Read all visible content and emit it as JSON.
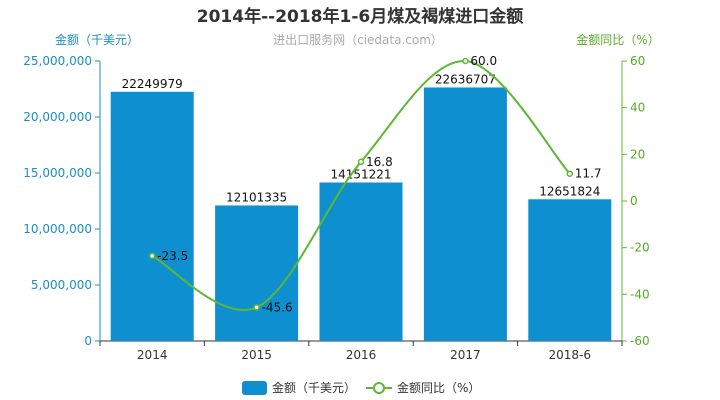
{
  "chart_data": {
    "type": "bar",
    "title": "2014年--2018年1-6月煤及褐煤进口金额",
    "subtitle": "进出口服务网（ciedata.com）",
    "left_axis_label": "金额（千美元）",
    "right_axis_label": "金额同比（%）",
    "categories": [
      "2014",
      "2015",
      "2016",
      "2017",
      "2018-6"
    ],
    "left_ylim": [
      0,
      25000000
    ],
    "left_ticks": [
      0,
      5000000,
      10000000,
      15000000,
      20000000,
      25000000
    ],
    "left_tick_labels": [
      "0",
      "5,000,000",
      "10,000,000",
      "15,000,000",
      "20,000,000",
      "25,000,000"
    ],
    "right_ylim": [
      -60,
      60
    ],
    "right_ticks": [
      -60,
      -40,
      -20,
      0,
      20,
      40,
      60
    ],
    "right_tick_labels": [
      "-60",
      "-40",
      "-20",
      "0",
      "20",
      "40",
      "60"
    ],
    "series": [
      {
        "name": "金额（千美元）",
        "type": "bar",
        "axis": "left",
        "values": [
          22249979,
          12101335,
          14151221,
          22636707,
          12651824
        ],
        "labels": [
          "22249979",
          "12101335",
          "14151221",
          "22636707",
          "12651824"
        ],
        "color": "#0e8fd0"
      },
      {
        "name": "金额同比（%）",
        "type": "line",
        "axis": "right",
        "smooth": true,
        "values": [
          -23.5,
          -45.6,
          16.8,
          60.0,
          11.7
        ],
        "labels": [
          "-23.5",
          "-45.6",
          "16.8",
          "60.0",
          "11.7"
        ],
        "color": "#5cb833"
      }
    ],
    "legend_position": "bottom-center"
  }
}
